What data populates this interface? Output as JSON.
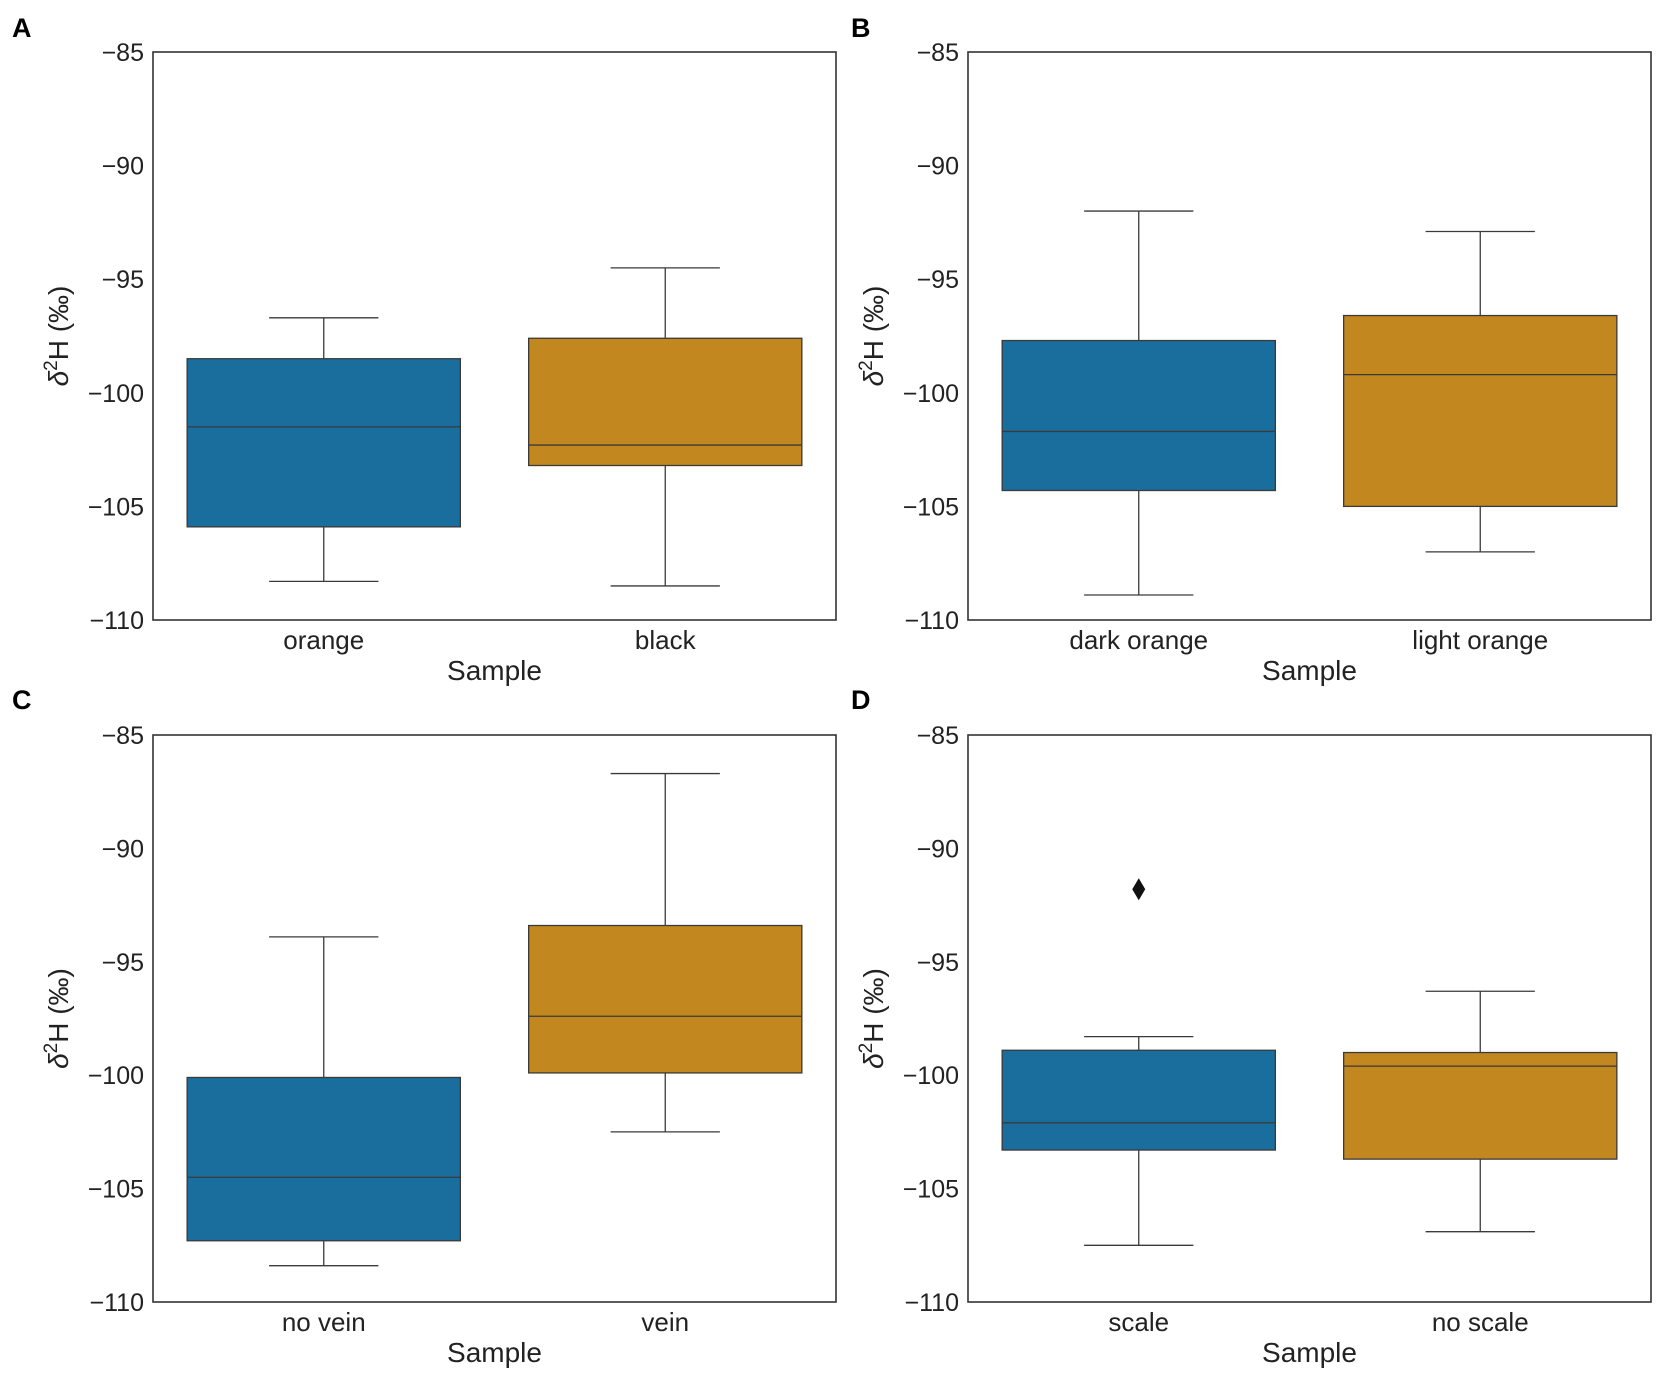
{
  "figure": {
    "panels": [
      {
        "letter": "A",
        "chart_data": {
          "type": "box",
          "categories": [
            "orange",
            "black"
          ],
          "boxes": [
            {
              "category": "orange",
              "whisker_low": -108.3,
              "q1": -105.9,
              "median": -101.5,
              "q3": -98.5,
              "whisker_high": -96.7,
              "outliers": [],
              "color": "#1a6e9e"
            },
            {
              "category": "black",
              "whisker_low": -108.5,
              "q1": -103.2,
              "median": -102.3,
              "q3": -97.6,
              "whisker_high": -94.5,
              "outliers": [],
              "color": "#c3871f"
            }
          ],
          "xlabel": "Sample",
          "ylabel_symbol": "δ",
          "ylabel_superscript": "2",
          "ylabel_rest": "H (‰)",
          "ylim": [
            -110,
            -85
          ],
          "yticks": [
            -85,
            -90,
            -95,
            -100,
            -105,
            -110
          ],
          "ytick_labels": [
            "−85",
            "−90",
            "−95",
            "−100",
            "−105",
            "−110"
          ]
        }
      },
      {
        "letter": "B",
        "chart_data": {
          "type": "box",
          "categories": [
            "dark orange",
            "light orange"
          ],
          "boxes": [
            {
              "category": "dark orange",
              "whisker_low": -108.9,
              "q1": -104.3,
              "median": -101.7,
              "q3": -97.7,
              "whisker_high": -92.0,
              "outliers": [],
              "color": "#1a6e9e"
            },
            {
              "category": "light orange",
              "whisker_low": -107.0,
              "q1": -105.0,
              "median": -99.2,
              "q3": -96.6,
              "whisker_high": -92.9,
              "outliers": [],
              "color": "#c3871f"
            }
          ],
          "xlabel": "Sample",
          "ylabel_symbol": "δ",
          "ylabel_superscript": "2",
          "ylabel_rest": "H (‰)",
          "ylim": [
            -110,
            -85
          ],
          "yticks": [
            -85,
            -90,
            -95,
            -100,
            -105,
            -110
          ],
          "ytick_labels": [
            "−85",
            "−90",
            "−95",
            "−100",
            "−105",
            "−110"
          ]
        }
      },
      {
        "letter": "C",
        "chart_data": {
          "type": "box",
          "categories": [
            "no vein",
            "vein"
          ],
          "boxes": [
            {
              "category": "no vein",
              "whisker_low": -108.4,
              "q1": -107.3,
              "median": -104.5,
              "q3": -100.1,
              "whisker_high": -93.9,
              "outliers": [],
              "color": "#1a6e9e"
            },
            {
              "category": "vein",
              "whisker_low": -102.5,
              "q1": -99.9,
              "median": -97.4,
              "q3": -93.4,
              "whisker_high": -86.7,
              "outliers": [],
              "color": "#c3871f"
            }
          ],
          "xlabel": "Sample",
          "ylabel_symbol": "δ",
          "ylabel_superscript": "2",
          "ylabel_rest": "H (‰)",
          "ylim": [
            -110,
            -85
          ],
          "yticks": [
            -85,
            -90,
            -95,
            -100,
            -105,
            -110
          ],
          "ytick_labels": [
            "−85",
            "−90",
            "−95",
            "−100",
            "−105",
            "−110"
          ]
        }
      },
      {
        "letter": "D",
        "chart_data": {
          "type": "box",
          "categories": [
            "scale",
            "no scale"
          ],
          "boxes": [
            {
              "category": "scale",
              "whisker_low": -107.5,
              "q1": -103.3,
              "median": -102.1,
              "q3": -98.9,
              "whisker_high": -98.3,
              "outliers": [
                -91.8
              ],
              "color": "#1a6e9e"
            },
            {
              "category": "no scale",
              "whisker_low": -106.9,
              "q1": -103.7,
              "median": -99.6,
              "q3": -99.0,
              "whisker_high": -96.3,
              "outliers": [],
              "color": "#c3871f"
            }
          ],
          "xlabel": "Sample",
          "ylabel_symbol": "δ",
          "ylabel_superscript": "2",
          "ylabel_rest": "H (‰)",
          "ylim": [
            -110,
            -85
          ],
          "yticks": [
            -85,
            -90,
            -95,
            -100,
            -105,
            -110
          ],
          "ytick_labels": [
            "−85",
            "−90",
            "−95",
            "−100",
            "−105",
            "−110"
          ]
        }
      }
    ]
  }
}
